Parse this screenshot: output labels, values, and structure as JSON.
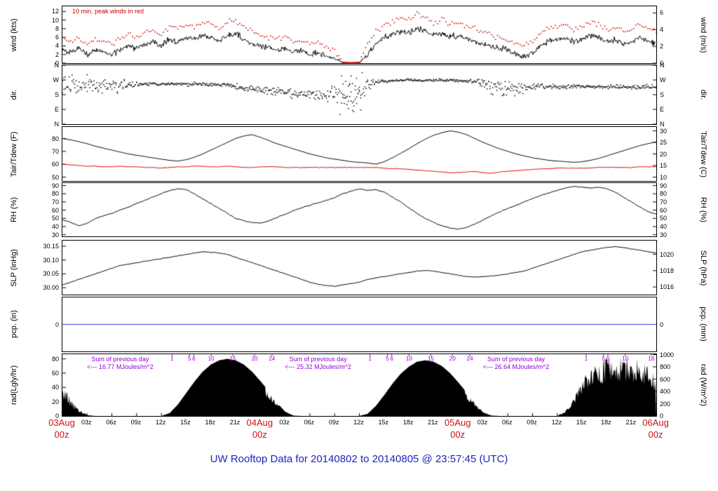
{
  "title": "UW Rooftop Data for 20140802  to  20140805 @ 23:57:45  (UTC)",
  "colors": {
    "title": "#2222bb",
    "date_red": "#cc1111",
    "annotation_purple": "#9400d3",
    "peak_red": "#cc0000",
    "dew_red": "#dd0000",
    "pcp_blue": "#2233cc"
  },
  "x_axis": {
    "hours_total": 72,
    "days": 3,
    "minor_labels": [
      "03z",
      "06z",
      "09z",
      "12z",
      "15z",
      "18z",
      "21z"
    ],
    "major_ticks": [
      {
        "hour": 0,
        "date": "03Aug",
        "z": "00z"
      },
      {
        "hour": 24,
        "date": "04Aug",
        "z": "00z"
      },
      {
        "hour": 48,
        "date": "05Aug",
        "z": "00z"
      },
      {
        "hour": 72,
        "date": "06Aug",
        "z": "00z"
      }
    ]
  },
  "chart_data": [
    {
      "kind": "wind",
      "type": "line",
      "title_left": "wind (kts)",
      "title_right": "wind (m/s)",
      "ylim": [
        0,
        13.2
      ],
      "yticks_left": [
        {
          "v": 0,
          "label": "0"
        },
        {
          "v": 2,
          "label": "2"
        },
        {
          "v": 4,
          "label": "4"
        },
        {
          "v": 6,
          "label": "6"
        },
        {
          "v": 8,
          "label": "8"
        },
        {
          "v": 10,
          "label": "10"
        },
        {
          "v": 12,
          "label": "12"
        }
      ],
      "yticks_right": [
        {
          "v": 0,
          "label": "0"
        },
        {
          "v": 2,
          "label": "2"
        },
        {
          "v": 4,
          "label": "4"
        },
        {
          "v": 6,
          "label": "6"
        }
      ],
      "right_scale": {
        "a": 1.9438,
        "b": 0
      },
      "legend": "10 min. peak winds in red",
      "line_color": "#000000",
      "peak_color": "#cc0000",
      "x_hours_step": 1,
      "avg_kts": [
        3,
        2.5,
        3.5,
        2,
        3,
        2.5,
        2,
        3,
        4,
        3.5,
        4.5,
        5,
        4,
        5.5,
        5,
        6,
        5.5,
        6.5,
        6,
        5,
        6.5,
        7,
        5.5,
        4.5,
        4,
        3.5,
        3,
        3.5,
        2.5,
        3,
        2,
        2.5,
        1.5,
        1,
        0.2,
        0.1,
        0.2,
        2,
        4.5,
        6,
        6.5,
        7.5,
        7,
        8,
        7.5,
        6.5,
        7,
        6,
        6.5,
        5.5,
        5,
        4.5,
        4,
        3.5,
        3,
        2,
        1.5,
        2.5,
        4,
        5,
        5.5,
        6,
        5,
        5.5,
        6.5,
        6,
        5,
        5.5,
        4.5,
        5,
        6,
        5,
        4.5
      ],
      "peak_kts": [
        5.5,
        5,
        6,
        4.5,
        5.5,
        5,
        4.5,
        5.5,
        7,
        6,
        7.5,
        8,
        6.5,
        8.5,
        8,
        9,
        8.5,
        9.5,
        9,
        8,
        9.5,
        10,
        8.5,
        7.5,
        6.5,
        6,
        5.5,
        6,
        5,
        5.5,
        4.5,
        5,
        3.5,
        3,
        0.2,
        0.1,
        0.2,
        4.5,
        7.5,
        9,
        9.5,
        10.5,
        10,
        11.5,
        10.5,
        9.5,
        10,
        9,
        9.5,
        8.5,
        8,
        7.5,
        6.5,
        6,
        5.5,
        4.5,
        4,
        5,
        7,
        8,
        8.5,
        9,
        8,
        8.5,
        9.5,
        9,
        8,
        8.5,
        7.5,
        8,
        9,
        8,
        7.5
      ]
    },
    {
      "kind": "dir",
      "type": "scatter",
      "title_left": "dir.",
      "title_right": "dir.",
      "ylim": [
        0,
        360
      ],
      "yticks_left": [
        {
          "v": 360,
          "label": "N"
        },
        {
          "v": 270,
          "label": "W"
        },
        {
          "v": 180,
          "label": "S"
        },
        {
          "v": 90,
          "label": "E"
        },
        {
          "v": 0,
          "label": "N"
        }
      ],
      "yticks_right": [
        {
          "v": 360,
          "label": "N"
        },
        {
          "v": 270,
          "label": "W"
        },
        {
          "v": 180,
          "label": "S"
        },
        {
          "v": 90,
          "label": "E"
        },
        {
          "v": 0,
          "label": "N"
        }
      ],
      "right_scale": {
        "a": 1,
        "b": 0
      },
      "dot_color": "#000000",
      "base_deg": [
        240,
        245,
        238,
        242,
        235,
        232,
        238,
        235,
        240,
        245,
        248,
        246,
        244,
        247,
        245,
        243,
        246,
        244,
        242,
        240,
        238,
        228,
        220,
        215,
        210,
        205,
        200,
        195,
        190,
        185,
        182,
        180,
        185,
        195,
        180,
        180,
        180,
        230,
        258,
        262,
        266,
        268,
        270,
        268,
        266,
        268,
        270,
        268,
        266,
        264,
        262,
        250,
        235,
        220,
        210,
        215,
        222,
        228,
        232,
        230,
        228,
        226,
        230,
        234,
        230,
        226,
        228,
        230,
        226,
        222,
        226,
        230,
        228
      ],
      "spread_deg": [
        100,
        90,
        85,
        80,
        55,
        50,
        55,
        50,
        40,
        20,
        16,
        15,
        15,
        14,
        15,
        16,
        15,
        14,
        15,
        16,
        18,
        25,
        28,
        30,
        30,
        32,
        35,
        40,
        45,
        45,
        50,
        55,
        60,
        70,
        170,
        175,
        170,
        80,
        18,
        14,
        12,
        10,
        10,
        10,
        10,
        10,
        10,
        10,
        12,
        14,
        18,
        45,
        70,
        85,
        80,
        60,
        45,
        35,
        25,
        22,
        20,
        20,
        18,
        18,
        16,
        16,
        18,
        18,
        20,
        20,
        18,
        18,
        18
      ]
    },
    {
      "kind": "lines",
      "type": "line",
      "title_left": "Tair/Tdew (F)",
      "title_right": "Tair/Tdew (C)",
      "ylim": [
        47,
        89
      ],
      "yticks_left": [
        {
          "v": 50,
          "label": "50"
        },
        {
          "v": 60,
          "label": "60"
        },
        {
          "v": 70,
          "label": "70"
        },
        {
          "v": 80,
          "label": "80"
        }
      ],
      "yticks_right": [
        {
          "v": 10,
          "label": "10"
        },
        {
          "v": 15,
          "label": "15"
        },
        {
          "v": 20,
          "label": "20"
        },
        {
          "v": 25,
          "label": "25"
        },
        {
          "v": 30,
          "label": "30"
        }
      ],
      "right_scale": {
        "a": 1.8,
        "b": 32
      },
      "series": [
        {
          "name": "Tair_F",
          "color": "#000000",
          "noise": 0.15,
          "values": [
            80,
            79,
            77.5,
            76,
            74,
            72.5,
            71,
            69.5,
            68,
            67,
            66,
            65,
            64,
            63,
            62.5,
            63.5,
            65.5,
            68,
            71,
            74,
            77,
            80,
            82,
            83,
            81,
            78.5,
            76,
            74,
            72,
            70,
            68,
            66.5,
            65,
            64,
            63,
            62,
            61.5,
            61,
            60,
            62,
            65,
            68.5,
            72,
            76,
            79.5,
            82.5,
            84.5,
            86,
            85,
            83,
            80,
            77,
            74.5,
            72,
            70,
            68,
            66.5,
            65,
            64,
            63,
            62.5,
            62,
            61.5,
            62,
            63,
            64.5,
            66.5,
            68.5,
            70.5,
            72.5,
            74.5,
            76,
            77.5
          ]
        },
        {
          "name": "Tdew_F",
          "color": "#dd0000",
          "noise": 0.35,
          "values": [
            60,
            59.5,
            59,
            58.5,
            58.5,
            58,
            58,
            58.5,
            58,
            58,
            57.5,
            57.5,
            57,
            57.5,
            58,
            58,
            58.5,
            58.5,
            58,
            58,
            58.5,
            58,
            57.5,
            57.5,
            58,
            58,
            58,
            57.5,
            57.5,
            57.5,
            57.5,
            57.5,
            57.5,
            57.5,
            57.5,
            57.5,
            57.5,
            57.5,
            57.5,
            57,
            56.5,
            56.5,
            56,
            55.5,
            55,
            54.5,
            54,
            53.5,
            53.5,
            54,
            54.5,
            53.5,
            53,
            54,
            54.5,
            55,
            55.5,
            56,
            56.5,
            56.5,
            57,
            57,
            57,
            57,
            57,
            57.5,
            57.5,
            57.5,
            57.5,
            57.5,
            58,
            58,
            58
          ]
        }
      ]
    },
    {
      "kind": "lines",
      "type": "line",
      "title_left": "RH (%)",
      "title_right": "RH (%)",
      "ylim": [
        28,
        93
      ],
      "yticks_left": [
        {
          "v": 30,
          "label": "30"
        },
        {
          "v": 40,
          "label": "40"
        },
        {
          "v": 50,
          "label": "50"
        },
        {
          "v": 60,
          "label": "60"
        },
        {
          "v": 70,
          "label": "70"
        },
        {
          "v": 80,
          "label": "80"
        },
        {
          "v": 90,
          "label": "90"
        }
      ],
      "yticks_right": [
        {
          "v": 30,
          "label": "30"
        },
        {
          "v": 40,
          "label": "40"
        },
        {
          "v": 50,
          "label": "50"
        },
        {
          "v": 60,
          "label": "60"
        },
        {
          "v": 70,
          "label": "70"
        },
        {
          "v": 80,
          "label": "80"
        },
        {
          "v": 90,
          "label": "90"
        }
      ],
      "right_scale": {
        "a": 1,
        "b": 0
      },
      "series": [
        {
          "name": "RH",
          "color": "#000000",
          "noise": 0.7,
          "values": [
            48,
            45,
            41,
            44,
            50,
            53,
            56,
            60,
            64,
            68,
            72,
            76,
            80,
            84,
            86,
            85,
            80,
            74,
            68,
            62,
            56,
            50,
            47,
            45,
            44,
            47,
            51,
            55,
            59,
            63,
            66,
            69,
            72,
            75,
            80,
            83,
            86,
            84,
            85,
            82,
            76,
            70,
            63,
            56,
            50,
            45,
            41,
            38,
            37,
            39,
            43,
            48,
            53,
            58,
            62,
            66,
            70,
            74,
            78,
            81,
            84,
            87,
            89,
            88,
            87,
            88,
            86,
            82,
            76,
            70,
            64,
            58,
            55
          ]
        }
      ]
    },
    {
      "kind": "lines",
      "type": "line",
      "title_left": "SLP (inHg)",
      "title_right": "SLP (hPa)",
      "ylim": [
        29.975,
        30.17
      ],
      "yticks_left": [
        {
          "v": 30.0,
          "label": "30.00"
        },
        {
          "v": 30.05,
          "label": "30.05"
        },
        {
          "v": 30.1,
          "label": "30.10"
        },
        {
          "v": 30.15,
          "label": "30.15"
        }
      ],
      "yticks_right": [
        {
          "v": 1016,
          "label": "1016"
        },
        {
          "v": 1018,
          "label": "1018"
        },
        {
          "v": 1020,
          "label": "1020"
        }
      ],
      "right_scale": {
        "a": 0.02953,
        "b": 0
      },
      "series": [
        {
          "name": "SLP_inHg",
          "color": "#000000",
          "noise": 0.0015,
          "values": [
            30.01,
            30.02,
            30.03,
            30.04,
            30.05,
            30.06,
            30.07,
            30.08,
            30.085,
            30.09,
            30.095,
            30.1,
            30.105,
            30.11,
            30.115,
            30.12,
            30.125,
            30.13,
            30.128,
            30.125,
            30.12,
            30.11,
            30.1,
            30.09,
            30.08,
            30.07,
            30.06,
            30.05,
            30.04,
            30.03,
            30.02,
            30.012,
            30.008,
            30.005,
            30.01,
            30.015,
            30.02,
            30.03,
            30.035,
            30.04,
            30.045,
            30.05,
            30.055,
            30.06,
            30.062,
            30.06,
            30.055,
            30.05,
            30.045,
            30.04,
            30.038,
            30.04,
            30.042,
            30.045,
            30.05,
            30.055,
            30.06,
            30.07,
            30.08,
            30.09,
            30.1,
            30.11,
            30.12,
            30.13,
            30.135,
            30.14,
            30.145,
            30.148,
            30.145,
            30.14,
            30.135,
            30.13,
            30.125
          ]
        }
      ]
    },
    {
      "kind": "flat",
      "type": "line",
      "title_left": "pcp. (in)",
      "title_right": "pcp. (mm)",
      "ylim": [
        -1,
        1
      ],
      "value": 0,
      "yticks_left": [
        {
          "v": 0,
          "label": "0"
        }
      ],
      "yticks_right": [
        {
          "v": 0,
          "label": "0"
        }
      ],
      "right_scale": {
        "a": 0.03937,
        "b": 0
      },
      "line_color": "#2233cc"
    },
    {
      "kind": "area",
      "type": "area",
      "title_left": "rad(Lgly/hr)",
      "title_right": "rad (W/m^2)",
      "ylim": [
        0,
        86.5
      ],
      "yticks_left": [
        {
          "v": 0,
          "label": "0"
        },
        {
          "v": 20,
          "label": "20"
        },
        {
          "v": 40,
          "label": "40"
        },
        {
          "v": 60,
          "label": "60"
        },
        {
          "v": 80,
          "label": "80"
        }
      ],
      "yticks_right": [
        {
          "v": 0,
          "label": "0"
        },
        {
          "v": 200,
          "label": "200"
        },
        {
          "v": 400,
          "label": "400"
        },
        {
          "v": 600,
          "label": "600"
        },
        {
          "v": 800,
          "label": "800"
        },
        {
          "v": 1000,
          "label": "1000"
        }
      ],
      "right_scale": {
        "a": 0.086,
        "b": 0
      },
      "fill_color": "#000000",
      "annotation_color": "#9400d3",
      "values": [
        45,
        25,
        10,
        1,
        0,
        0,
        0,
        0,
        0,
        0,
        0,
        0,
        0,
        4,
        16,
        32,
        48,
        62,
        72,
        78,
        80,
        78,
        72,
        62,
        49,
        35,
        19,
        6,
        0.5,
        0,
        0,
        0,
        0,
        0,
        0,
        0,
        0,
        3,
        14,
        29,
        45,
        59,
        69,
        76,
        78,
        76,
        70,
        60,
        47,
        33,
        18,
        5,
        0.5,
        0,
        0,
        0,
        0,
        0,
        0,
        0,
        0,
        7,
        28,
        52,
        68,
        78,
        84,
        80,
        85,
        76,
        81,
        70,
        58
      ],
      "noisy_ranges": [
        {
          "from": 0,
          "to": 2.6,
          "amp": 0.5
        },
        {
          "from": 24.6,
          "to": 26.4,
          "amp": 0.35
        },
        {
          "from": 48.8,
          "to": 50.6,
          "amp": 0.3
        },
        {
          "from": 60.5,
          "to": 72,
          "amp": 0.45
        }
      ],
      "annotations": [
        {
          "hour": 7,
          "line1": "Sum of previous day",
          "line2": "<--- 16.77 MJoules/m^2"
        },
        {
          "hour": 31,
          "line1": "Sum of previous day",
          "line2": "<--- 25.32 MJoules/m^2"
        },
        {
          "hour": 55,
          "line1": "Sum of previous day",
          "line2": "<--- 26.64 MJoules/m^2"
        }
      ],
      "hour_marks": [
        {
          "span": [
            13.3,
            25.4
          ],
          "labels": [
            "1",
            "5",
            "6",
            "10",
            "15",
            "20",
            "24"
          ]
        },
        {
          "span": [
            37.3,
            49.4
          ],
          "labels": [
            "1",
            "5",
            "6",
            "10",
            "15",
            "20",
            "24"
          ]
        },
        {
          "span": [
            63.5,
            75.6
          ],
          "labels": [
            "1",
            "5",
            "6",
            "10",
            "16"
          ]
        }
      ]
    }
  ]
}
